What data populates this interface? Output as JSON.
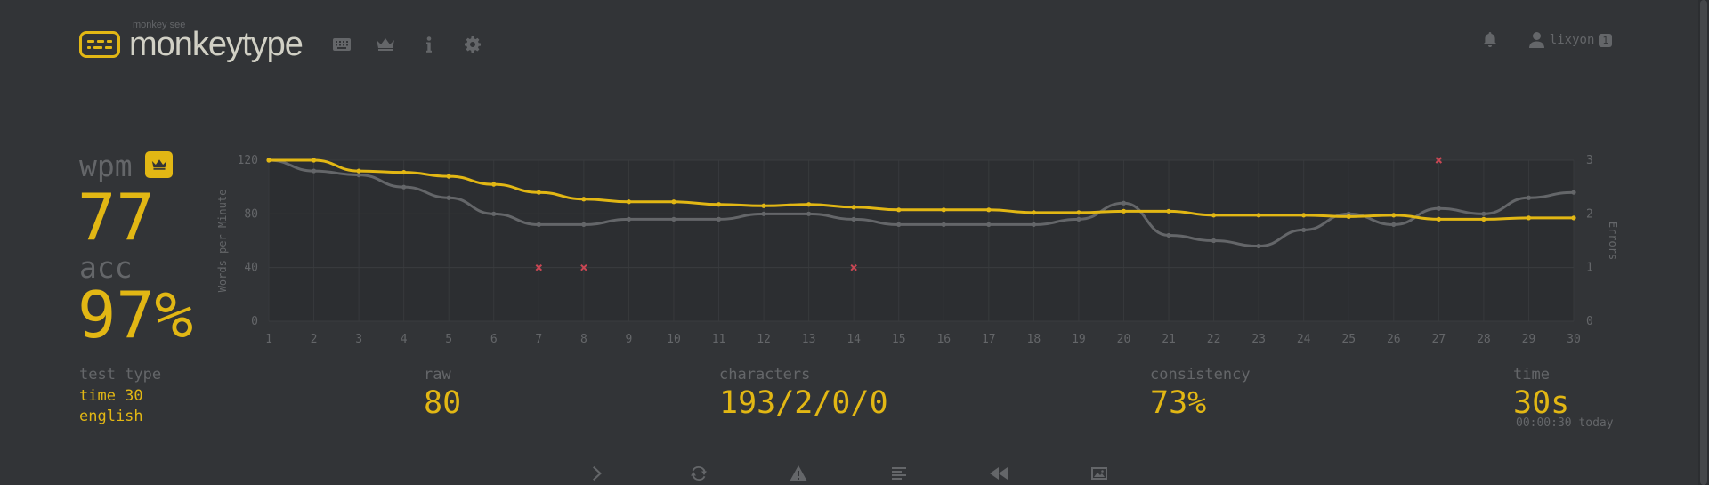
{
  "app": {
    "logo_top": "monkey see",
    "logo_main": "monkeytype"
  },
  "nav": {
    "icons": [
      "keyboard-icon",
      "crown-icon",
      "info-icon",
      "gear-icon"
    ]
  },
  "account": {
    "username": "lixyon",
    "level": "1"
  },
  "result": {
    "wpm_label": "wpm",
    "wpm": "77",
    "acc_label": "acc",
    "acc": "97%"
  },
  "stats": {
    "test_type_label": "test type",
    "test_mode": "time 30",
    "language": "english",
    "raw_label": "raw",
    "raw": "80",
    "characters_label": "characters",
    "characters": "193/2/0/0",
    "consistency_label": "consistency",
    "consistency": "73%",
    "time_label": "time",
    "time": "30s",
    "time_detail": "00:00:30 today"
  },
  "actions": [
    "next-test",
    "restart-test",
    "report-test",
    "show-words-history",
    "show-replay",
    "save-screenshot"
  ],
  "colors": {
    "background": "#323437",
    "main": "#e2b714",
    "sub": "#646669",
    "text": "#d1d0c5",
    "raw_line": "#646669",
    "error": "#ca4754"
  },
  "chart_data": {
    "type": "line",
    "ylabel": "Words per Minute",
    "y2label": "Errors",
    "ylim": [
      0,
      120
    ],
    "y2lim": [
      0,
      3
    ],
    "yticks": [
      "0",
      "40",
      "80",
      "120"
    ],
    "y2ticks": [
      "0",
      "1",
      "2",
      "3"
    ],
    "x": [
      1,
      2,
      3,
      4,
      5,
      6,
      7,
      8,
      9,
      10,
      11,
      12,
      13,
      14,
      15,
      16,
      17,
      18,
      19,
      20,
      21,
      22,
      23,
      24,
      25,
      26,
      27,
      28,
      29,
      30
    ],
    "series": [
      {
        "key": "wpm",
        "color": "#e2b714",
        "values": [
          120,
          120,
          112,
          111,
          108,
          102,
          96,
          91,
          89,
          89,
          87,
          86,
          87,
          85,
          83,
          83,
          83,
          81,
          81,
          82,
          82,
          79,
          79,
          79,
          78,
          79,
          76,
          76,
          77,
          77
        ]
      },
      {
        "key": "raw",
        "color": "#646669",
        "values": [
          120,
          112,
          109,
          100,
          92,
          80,
          72,
          72,
          76,
          76,
          76,
          80,
          80,
          76,
          72,
          72,
          72,
          72,
          76,
          88,
          64,
          60,
          56,
          68,
          80,
          72,
          84,
          80,
          92,
          96
        ]
      }
    ],
    "errors": [
      {
        "x": 7,
        "value": 1
      },
      {
        "x": 8,
        "value": 1
      },
      {
        "x": 14,
        "value": 1
      },
      {
        "x": 27,
        "value": 3
      }
    ],
    "grid": true
  }
}
